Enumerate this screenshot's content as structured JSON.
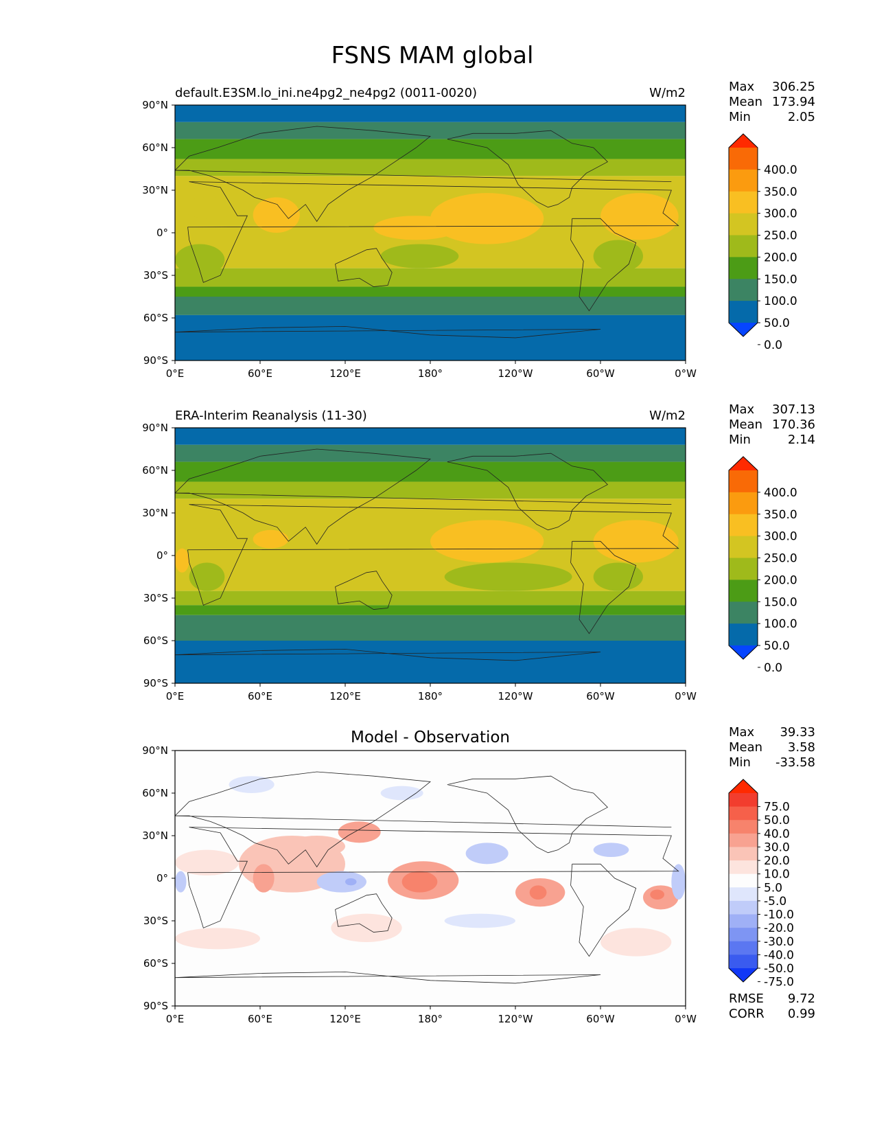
{
  "figure": {
    "title": "FSNS MAM global"
  },
  "chart_data": [
    {
      "type": "heatmap",
      "panel": "test",
      "left_title": "default.E3SM.lo_ini.ne4pg2_ne4pg2 (0011-0020)",
      "center_title": "",
      "units": "W/m2",
      "x_ticks": [
        "0°E",
        "60°E",
        "120°E",
        "180°",
        "120°W",
        "60°W",
        "0°W"
      ],
      "y_ticks": [
        "90°N",
        "60°N",
        "30°N",
        "0°",
        "30°S",
        "60°S",
        "90°S"
      ],
      "xlim": [
        0,
        360
      ],
      "ylim": [
        -90,
        90
      ],
      "stats": [
        {
          "label": "Max",
          "value": "306.25"
        },
        {
          "label": "Mean",
          "value": "173.94"
        },
        {
          "label": "Min",
          "value": "2.05"
        }
      ],
      "colorbar": {
        "tick_labels": [
          "400.0",
          "350.0",
          "300.0",
          "250.0",
          "200.0",
          "150.0",
          "100.0",
          "50.0",
          "0.0"
        ],
        "colors": [
          "#ff2a00",
          "#f96a06",
          "#fb9b0f",
          "#f9bf22",
          "#d3c522",
          "#9fba1b",
          "#4c9c16",
          "#3c8463",
          "#056aaa",
          "#0645ff"
        ]
      },
      "zonal_bands": [
        {
          "lat": [
            90,
            78
          ],
          "value": 30
        },
        {
          "lat": [
            78,
            66
          ],
          "value": 80
        },
        {
          "lat": [
            66,
            52
          ],
          "value": 130
        },
        {
          "lat": [
            52,
            40
          ],
          "value": 180
        },
        {
          "lat": [
            40,
            -25
          ],
          "value": 225
        },
        {
          "lat": [
            -25,
            -38
          ],
          "value": 175
        },
        {
          "lat": [
            -38,
            -45
          ],
          "value": 125
        },
        {
          "lat": [
            -45,
            -58
          ],
          "value": 75
        },
        {
          "lat": [
            -58,
            -90
          ],
          "value": 25
        }
      ],
      "regions": [
        {
          "lon": [
            55,
            88
          ],
          "lat": [
            25,
            0
          ],
          "value": 270
        },
        {
          "lon": [
            140,
            200
          ],
          "lat": [
            12,
            -5
          ],
          "value": 265
        },
        {
          "lon": [
            180,
            260
          ],
          "lat": [
            28,
            -8
          ],
          "value": 270
        },
        {
          "lon": [
            300,
            355
          ],
          "lat": [
            28,
            -5
          ],
          "value": 275
        },
        {
          "lon": [
            5,
            45
          ],
          "lat": [
            25,
            10
          ],
          "value": 215
        },
        {
          "lon": [
            0,
            35
          ],
          "lat": [
            -8,
            -30
          ],
          "value": 165
        },
        {
          "lon": [
            295,
            330
          ],
          "lat": [
            -5,
            -28
          ],
          "value": 175
        },
        {
          "lon": [
            145,
            200
          ],
          "lat": [
            -8,
            -25
          ],
          "value": 180
        }
      ]
    },
    {
      "type": "heatmap",
      "panel": "reference",
      "left_title": "ERA-Interim Reanalysis (11-30)",
      "center_title": "",
      "units": "W/m2",
      "x_ticks": [
        "0°E",
        "60°E",
        "120°E",
        "180°",
        "120°W",
        "60°W",
        "0°W"
      ],
      "y_ticks": [
        "90°N",
        "60°N",
        "30°N",
        "0°",
        "30°S",
        "60°S",
        "90°S"
      ],
      "xlim": [
        0,
        360
      ],
      "ylim": [
        -90,
        90
      ],
      "stats": [
        {
          "label": "Max",
          "value": "307.13"
        },
        {
          "label": "Mean",
          "value": "170.36"
        },
        {
          "label": "Min",
          "value": "2.14"
        }
      ],
      "colorbar": {
        "tick_labels": [
          "400.0",
          "350.0",
          "300.0",
          "250.0",
          "200.0",
          "150.0",
          "100.0",
          "50.0",
          "0.0"
        ],
        "colors": [
          "#ff2a00",
          "#f96a06",
          "#fb9b0f",
          "#f9bf22",
          "#d3c522",
          "#9fba1b",
          "#4c9c16",
          "#3c8463",
          "#056aaa",
          "#0645ff"
        ]
      },
      "zonal_bands": [
        {
          "lat": [
            90,
            78
          ],
          "value": 30
        },
        {
          "lat": [
            78,
            66
          ],
          "value": 80
        },
        {
          "lat": [
            66,
            52
          ],
          "value": 130
        },
        {
          "lat": [
            52,
            40
          ],
          "value": 180
        },
        {
          "lat": [
            40,
            -25
          ],
          "value": 220
        },
        {
          "lat": [
            -25,
            -35
          ],
          "value": 175
        },
        {
          "lat": [
            -35,
            -42
          ],
          "value": 125
        },
        {
          "lat": [
            -42,
            -60
          ],
          "value": 75
        },
        {
          "lat": [
            -60,
            -90
          ],
          "value": 25
        }
      ],
      "regions": [
        {
          "lon": [
            55,
            80
          ],
          "lat": [
            18,
            5
          ],
          "value": 260
        },
        {
          "lon": [
            180,
            260
          ],
          "lat": [
            25,
            -5
          ],
          "value": 265
        },
        {
          "lon": [
            295,
            355
          ],
          "lat": [
            25,
            -5
          ],
          "value": 275
        },
        {
          "lon": [
            0,
            10
          ],
          "lat": [
            5,
            -12
          ],
          "value": 260
        },
        {
          "lon": [
            5,
            40
          ],
          "lat": [
            20,
            8
          ],
          "value": 215
        },
        {
          "lon": [
            10,
            35
          ],
          "lat": [
            -5,
            -25
          ],
          "value": 175
        },
        {
          "lon": [
            190,
            280
          ],
          "lat": [
            -5,
            -25
          ],
          "value": 180
        },
        {
          "lon": [
            295,
            330
          ],
          "lat": [
            -5,
            -25
          ],
          "value": 175
        }
      ]
    },
    {
      "type": "heatmap",
      "panel": "difference",
      "left_title": "",
      "center_title": "Model - Observation",
      "units": "",
      "x_ticks": [
        "0°E",
        "60°E",
        "120°E",
        "180°",
        "120°W",
        "60°W",
        "0°W"
      ],
      "y_ticks": [
        "90°N",
        "60°N",
        "30°N",
        "0°",
        "30°S",
        "60°S",
        "90°S"
      ],
      "xlim": [
        0,
        360
      ],
      "ylim": [
        -90,
        90
      ],
      "stats": [
        {
          "label": "Max",
          "value": "39.33"
        },
        {
          "label": "Mean",
          "value": "3.58"
        },
        {
          "label": "Min",
          "value": "-33.58"
        }
      ],
      "extra_stats": [
        {
          "label": "RMSE",
          "value": "9.72"
        },
        {
          "label": "CORR",
          "value": "0.99"
        }
      ],
      "colorbar": {
        "tick_labels": [
          "75.0",
          "50.0",
          "40.0",
          "30.0",
          "20.0",
          "10.0",
          "5.0",
          "-5.0",
          "-10.0",
          "-20.0",
          "-30.0",
          "-40.0",
          "-50.0",
          "-75.0"
        ],
        "colors": [
          "#ff2a00",
          "#f23d2e",
          "#f6604a",
          "#f7836c",
          "#f8a291",
          "#fac4b7",
          "#fde4de",
          "#fdfdfd",
          "#dfe6fc",
          "#c0ccf9",
          "#9fb0f6",
          "#7e95f3",
          "#5b77f1",
          "#3a5bef",
          "#1138f6"
        ]
      },
      "zonal_bands": [
        {
          "lat": [
            90,
            -90
          ],
          "value": 0
        }
      ],
      "regions": [
        {
          "lon": [
            38,
            70
          ],
          "lat": [
            72,
            60
          ],
          "value": -7
        },
        {
          "lon": [
            145,
            175
          ],
          "lat": [
            65,
            55
          ],
          "value": -7
        },
        {
          "lon": [
            0,
            45
          ],
          "lat": [
            20,
            2
          ],
          "value": 7
        },
        {
          "lon": [
            45,
            120
          ],
          "lat": [
            30,
            -10
          ],
          "value": 12
        },
        {
          "lon": [
            55,
            70
          ],
          "lat": [
            10,
            -10
          ],
          "value": 22
        },
        {
          "lon": [
            80,
            120
          ],
          "lat": [
            30,
            15
          ],
          "value": 12
        },
        {
          "lon": [
            115,
            145
          ],
          "lat": [
            40,
            25
          ],
          "value": 22
        },
        {
          "lon": [
            0,
            8
          ],
          "lat": [
            5,
            -10
          ],
          "value": -15
        },
        {
          "lon": [
            100,
            135
          ],
          "lat": [
            5,
            -10
          ],
          "value": -15
        },
        {
          "lon": [
            120,
            128
          ],
          "lat": [
            0,
            -5
          ],
          "value": -25
        },
        {
          "lon": [
            150,
            200
          ],
          "lat": [
            12,
            -15
          ],
          "value": 22
        },
        {
          "lon": [
            160,
            185
          ],
          "lat": [
            5,
            -10
          ],
          "value": 35
        },
        {
          "lon": [
            205,
            235
          ],
          "lat": [
            25,
            10
          ],
          "value": -15
        },
        {
          "lon": [
            240,
            275
          ],
          "lat": [
            0,
            -20
          ],
          "value": 22
        },
        {
          "lon": [
            250,
            262
          ],
          "lat": [
            -5,
            -15
          ],
          "value": 35
        },
        {
          "lon": [
            295,
            320
          ],
          "lat": [
            25,
            15
          ],
          "value": -15
        },
        {
          "lon": [
            330,
            355
          ],
          "lat": [
            -5,
            -22
          ],
          "value": 22
        },
        {
          "lon": [
            335,
            345
          ],
          "lat": [
            -8,
            -15
          ],
          "value": 35
        },
        {
          "lon": [
            350,
            360
          ],
          "lat": [
            10,
            -15
          ],
          "value": -12
        },
        {
          "lon": [
            0,
            60
          ],
          "lat": [
            -35,
            -50
          ],
          "value": 7
        },
        {
          "lon": [
            110,
            160
          ],
          "lat": [
            -25,
            -45
          ],
          "value": 7
        },
        {
          "lon": [
            190,
            240
          ],
          "lat": [
            -25,
            -35
          ],
          "value": -7
        },
        {
          "lon": [
            300,
            350
          ],
          "lat": [
            -35,
            -55
          ],
          "value": 7
        }
      ]
    }
  ]
}
